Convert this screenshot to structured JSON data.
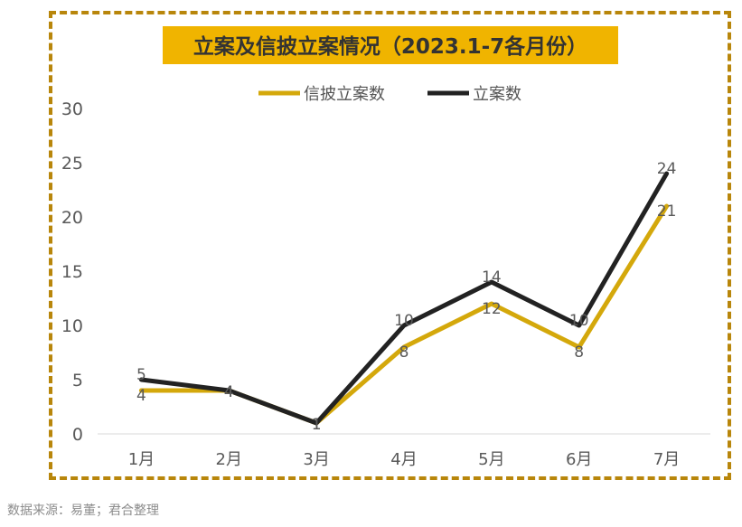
{
  "chart_data": {
    "type": "line",
    "title": "立案及信披立案情况（2023.1-7各月份）",
    "categories": [
      "1月",
      "2月",
      "3月",
      "4月",
      "5月",
      "6月",
      "7月"
    ],
    "series": [
      {
        "name": "信披立案数",
        "values": [
          4,
          4,
          1,
          8,
          12,
          8,
          21
        ],
        "color": "#d4a80b"
      },
      {
        "name": "立案数",
        "values": [
          5,
          4,
          1,
          10,
          14,
          10,
          24
        ],
        "color": "#222222"
      }
    ],
    "yticks": [
      "0",
      "5",
      "10",
      "15",
      "20",
      "25",
      "30"
    ],
    "ylim": [
      0,
      30
    ],
    "grid": false,
    "legend_position": "top-center",
    "title_bg": "#f0b400"
  },
  "footer": {
    "source": "数据来源：易董；君合整理"
  }
}
